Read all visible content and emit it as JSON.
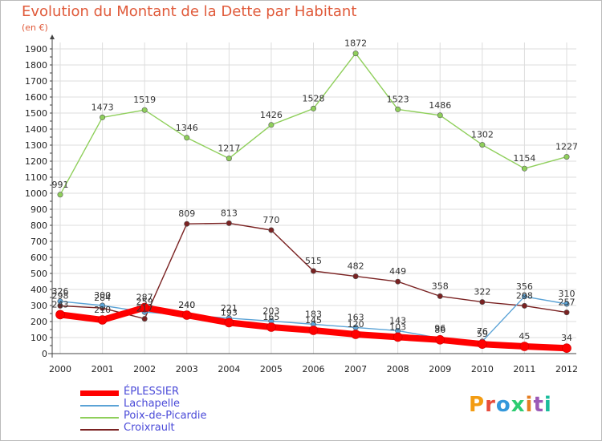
{
  "chart_data": {
    "type": "line",
    "title": "Evolution du Montant de la Dette par Habitant",
    "subtitle": "(en €)",
    "x": [
      "2000",
      "2001",
      "2002",
      "2003",
      "2004",
      "2005",
      "2006",
      "2007",
      "2008",
      "2009",
      "2010",
      "2011",
      "2012"
    ],
    "ylim": [
      0,
      1900
    ],
    "yticks": [
      0,
      100,
      200,
      300,
      400,
      500,
      600,
      700,
      800,
      900,
      1000,
      1100,
      1200,
      1300,
      1400,
      1500,
      1600,
      1700,
      1800,
      1900
    ],
    "grid": true,
    "legend_position": "bottom-left",
    "series": [
      {
        "name": "ÉPLESSIER",
        "color": "#ff0000",
        "values": [
          243,
          210,
          287,
          240,
          193,
          165,
          145,
          120,
          103,
          86,
          59,
          45,
          34
        ],
        "labels": [
          "243",
          "210",
          "287",
          "240",
          "193",
          "165",
          "145",
          "120",
          "103",
          "86",
          "59",
          "45",
          "34"
        ]
      },
      {
        "name": "Lachapelle",
        "color": "#5ba3d6",
        "values": [
          326,
          300,
          259,
          240,
          221,
          203,
          183,
          163,
          143,
          96,
          76,
          356,
          310
        ],
        "labels": [
          "326",
          "300",
          "259",
          "240",
          "221",
          "203",
          "183",
          "163",
          "143",
          "96",
          "76",
          "356",
          "310"
        ]
      },
      {
        "name": "Poix-de-Picardie",
        "color": "#8fcf5b",
        "values": [
          991,
          1473,
          1519,
          1346,
          1217,
          1426,
          1528,
          1872,
          1523,
          1486,
          1302,
          1154,
          1227
        ],
        "labels": [
          "991",
          "1473",
          "1519",
          "1346",
          "1217",
          "1426",
          "1528",
          "1872",
          "1523",
          "1486",
          "1302",
          "1154",
          "1227"
        ]
      },
      {
        "name": "Croixrault",
        "color": "#7a2222",
        "values": [
          298,
          284,
          217,
          809,
          813,
          770,
          515,
          482,
          449,
          358,
          322,
          298,
          257
        ],
        "labels": [
          "298",
          "284",
          "217",
          "809",
          "813",
          "770",
          "515",
          "482",
          "449",
          "358",
          "322",
          "298",
          "257"
        ]
      }
    ]
  },
  "logo": {
    "text": "Proxiti"
  }
}
